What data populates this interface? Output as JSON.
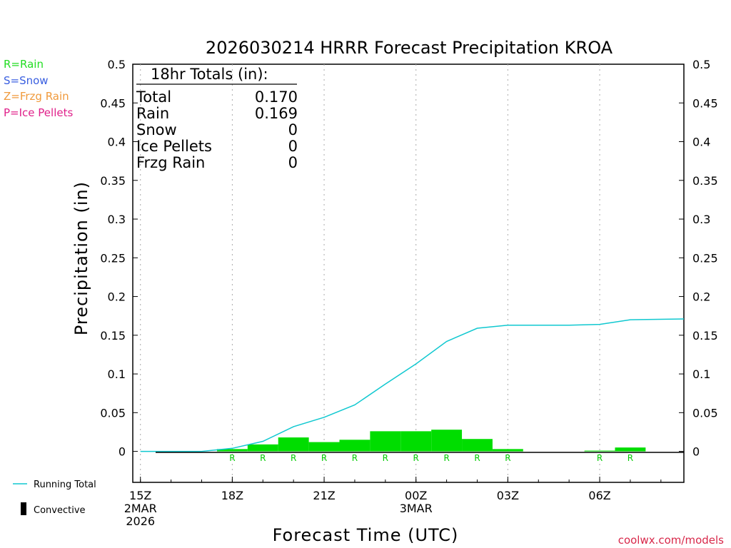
{
  "title": "2026030214 HRRR Forecast Precipitation KROA",
  "watermark": "coolwx.com/models",
  "legend": {
    "ptypes": [
      {
        "label": "R=Rain",
        "color": "#22dd22"
      },
      {
        "label": "S=Snow",
        "color": "#3a5fe0"
      },
      {
        "label": "Z=Frzg Rain",
        "color": "#f09a3c"
      },
      {
        "label": "P=Ice Pellets",
        "color": "#e0208a"
      }
    ],
    "running_total": "Running Total",
    "convective": "Convective"
  },
  "colors": {
    "bar": "#00dd00",
    "line": "#10c8d0",
    "rain_marker": "#00cc00"
  },
  "totals": {
    "heading": "18hr Totals (in):",
    "rows": [
      {
        "label": "Total",
        "value": "0.170"
      },
      {
        "label": "Rain",
        "value": "0.169"
      },
      {
        "label": "Snow",
        "value": "0"
      },
      {
        "label": "Ice Pellets",
        "value": "0"
      },
      {
        "label": "Frzg Rain",
        "value": "0"
      }
    ]
  },
  "chart_data": {
    "type": "bar",
    "xlabel": "Forecast Time (UTC)",
    "ylabel": "Precipitation (in)",
    "ylim": [
      -0.04,
      0.5
    ],
    "yticks": [
      0,
      0.05,
      0.1,
      0.15,
      0.2,
      0.25,
      0.3,
      0.35,
      0.4,
      0.45,
      0.5
    ],
    "xlim": [
      14.75,
      32.75
    ],
    "xticks": [
      {
        "hour": 15,
        "lines": [
          "15Z",
          "2MAR",
          "2026"
        ]
      },
      {
        "hour": 18,
        "lines": [
          "18Z"
        ]
      },
      {
        "hour": 21,
        "lines": [
          "21Z"
        ]
      },
      {
        "hour": 24,
        "lines": [
          "00Z",
          "3MAR"
        ]
      },
      {
        "hour": 27,
        "lines": [
          "03Z"
        ]
      },
      {
        "hour": 30,
        "lines": [
          "06Z"
        ]
      }
    ],
    "grid": "vertical dotted at labeled hours",
    "bars": [
      {
        "hour": 15,
        "value": 0,
        "ptype": ""
      },
      {
        "hour": 16,
        "value": 0,
        "ptype": ""
      },
      {
        "hour": 17,
        "value": 0,
        "ptype": ""
      },
      {
        "hour": 18,
        "value": 0.003,
        "ptype": "R"
      },
      {
        "hour": 19,
        "value": 0.009,
        "ptype": "R"
      },
      {
        "hour": 20,
        "value": 0.018,
        "ptype": "R"
      },
      {
        "hour": 21,
        "value": 0.012,
        "ptype": "R"
      },
      {
        "hour": 22,
        "value": 0.015,
        "ptype": "R"
      },
      {
        "hour": 23,
        "value": 0.026,
        "ptype": "R"
      },
      {
        "hour": 24,
        "value": 0.026,
        "ptype": "R"
      },
      {
        "hour": 25,
        "value": 0.028,
        "ptype": "R"
      },
      {
        "hour": 26,
        "value": 0.016,
        "ptype": "R"
      },
      {
        "hour": 27,
        "value": 0.003,
        "ptype": "R"
      },
      {
        "hour": 28,
        "value": 0,
        "ptype": ""
      },
      {
        "hour": 29,
        "value": 0,
        "ptype": ""
      },
      {
        "hour": 30,
        "value": 0.001,
        "ptype": "R"
      },
      {
        "hour": 31,
        "value": 0.005,
        "ptype": "R"
      },
      {
        "hour": 32,
        "value": 0,
        "ptype": ""
      }
    ],
    "running_total": [
      [
        15,
        0
      ],
      [
        16,
        0
      ],
      [
        17,
        0
      ],
      [
        18,
        0.004
      ],
      [
        19,
        0.013
      ],
      [
        20,
        0.032
      ],
      [
        21,
        0.044
      ],
      [
        22,
        0.06
      ],
      [
        23,
        0.087
      ],
      [
        24,
        0.113
      ],
      [
        25,
        0.142
      ],
      [
        26,
        0.159
      ],
      [
        27,
        0.163
      ],
      [
        28,
        0.163
      ],
      [
        29,
        0.163
      ],
      [
        30,
        0.164
      ],
      [
        31,
        0.17
      ],
      [
        32.75,
        0.171
      ]
    ]
  }
}
